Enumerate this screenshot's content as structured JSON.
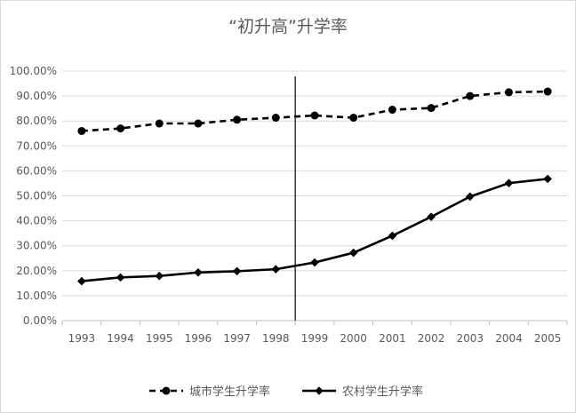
{
  "chart_data": {
    "type": "line",
    "title": "“初升高”升学率",
    "xlabel": "",
    "ylabel": "",
    "categories": [
      "1993",
      "1994",
      "1995",
      "1996",
      "1997",
      "1998",
      "1999",
      "2000",
      "2001",
      "2002",
      "2003",
      "2004",
      "2005"
    ],
    "ylim": [
      0,
      100
    ],
    "y_ticks": [
      0,
      10,
      20,
      30,
      40,
      50,
      60,
      70,
      80,
      90,
      100
    ],
    "y_tick_labels": [
      "0.00%",
      "10.00%",
      "20.00%",
      "30.00%",
      "40.00%",
      "50.00%",
      "60.00%",
      "70.00%",
      "80.00%",
      "90.00%",
      "100.00%"
    ],
    "grid": true,
    "legend_position": "bottom",
    "reference_line": {
      "between": [
        "1998",
        "1999"
      ]
    },
    "series": [
      {
        "name": "城市学生升学率",
        "style": "dashed",
        "marker": "circle",
        "color": "#000000",
        "values": [
          76.0,
          77.0,
          79.0,
          79.0,
          80.5,
          81.3,
          82.2,
          81.3,
          84.5,
          85.2,
          90.0,
          91.5,
          91.8
        ]
      },
      {
        "name": "农村学生升学率",
        "style": "solid",
        "marker": "diamond",
        "color": "#000000",
        "values": [
          15.8,
          17.3,
          17.9,
          19.3,
          19.8,
          20.6,
          23.3,
          27.2,
          34.0,
          41.6,
          49.7,
          55.1,
          56.8
        ]
      }
    ]
  }
}
